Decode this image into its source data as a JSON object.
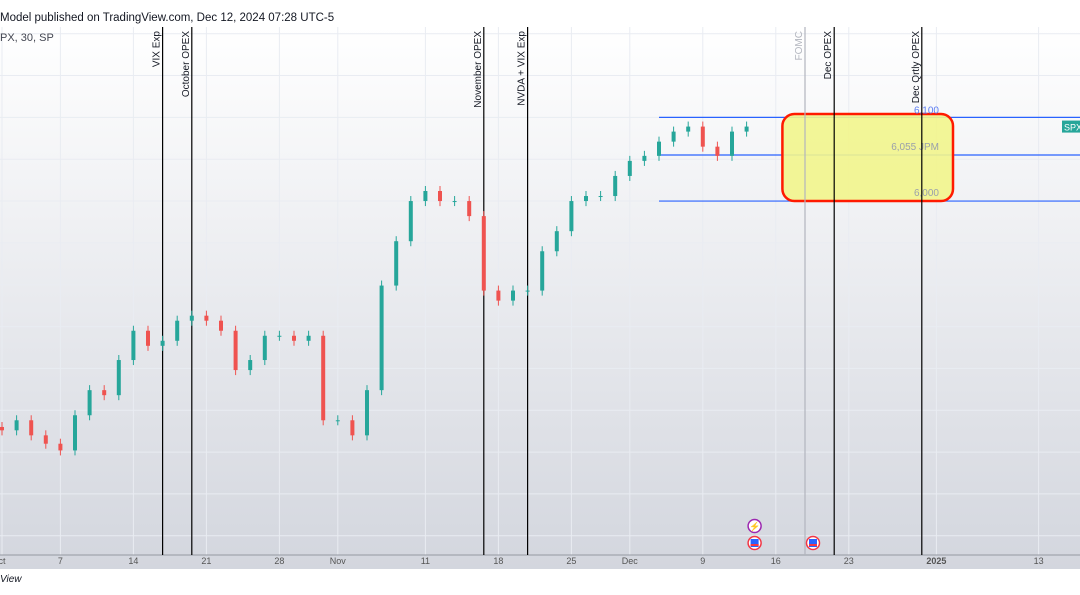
{
  "header": {
    "published": "Model published on TradingView.com, Dec 12, 2024 07:28 UTC-5",
    "symbol": "PX, 30, SP"
  },
  "footer": {
    "brand_fragment": "View"
  },
  "colors": {
    "up": "#26a69a",
    "down": "#ef5350",
    "level_line": "#2962ff",
    "zone_fill": "#f2f58c",
    "zone_border": "#ff1a00",
    "event_line": "#000000",
    "fomc_line": "#b2b5be",
    "spx_tag": "#26a69a"
  },
  "chart_data": {
    "type": "candlestick",
    "symbol_tag": "SPX",
    "interval": "30",
    "ylim": [
      5577,
      6208
    ],
    "grid": true,
    "dates": [
      "2024-10-01",
      "2024-10-02",
      "2024-10-03",
      "2024-10-04",
      "2024-10-07",
      "2024-10-08",
      "2024-10-09",
      "2024-10-10",
      "2024-10-11",
      "2024-10-14",
      "2024-10-15",
      "2024-10-16",
      "2024-10-17",
      "2024-10-18",
      "2024-10-21",
      "2024-10-22",
      "2024-10-23",
      "2024-10-24",
      "2024-10-25",
      "2024-10-28",
      "2024-10-29",
      "2024-10-30",
      "2024-10-31",
      "2024-11-01",
      "2024-11-04",
      "2024-11-05",
      "2024-11-06",
      "2024-11-07",
      "2024-11-08",
      "2024-11-11",
      "2024-11-12",
      "2024-11-13",
      "2024-11-14",
      "2024-11-15",
      "2024-11-18",
      "2024-11-19",
      "2024-11-20",
      "2024-11-21",
      "2024-11-22",
      "2024-11-25",
      "2024-11-26",
      "2024-11-27",
      "2024-11-29",
      "2024-12-02",
      "2024-12-03",
      "2024-12-04",
      "2024-12-05",
      "2024-12-06",
      "2024-12-09",
      "2024-12-10",
      "2024-12-11",
      "2024-12-12"
    ],
    "closes": [
      5726,
      5738,
      5720,
      5710,
      5702,
      5744,
      5774,
      5768,
      5810,
      5845,
      5827,
      5833,
      5857,
      5863,
      5857,
      5845,
      5798,
      5810,
      5839,
      5839,
      5833,
      5839,
      5738,
      5738,
      5720,
      5774,
      5899,
      5952,
      6000,
      6012,
      6000,
      6000,
      5982,
      5893,
      5881,
      5893,
      5893,
      5940,
      5964,
      6000,
      6006,
      6006,
      6030,
      6048,
      6054,
      6071,
      6083,
      6089,
      6065,
      6054,
      6083,
      6089
    ],
    "x_ticks": [
      {
        "label": "ct",
        "date": "2024-10-01"
      },
      {
        "label": "7",
        "date": "2024-10-07"
      },
      {
        "label": "14",
        "date": "2024-10-14"
      },
      {
        "label": "21",
        "date": "2024-10-21"
      },
      {
        "label": "28",
        "date": "2024-10-28"
      },
      {
        "label": "Nov",
        "date": "2024-11-01"
      },
      {
        "label": "11",
        "date": "2024-11-11"
      },
      {
        "label": "18",
        "date": "2024-11-18"
      },
      {
        "label": "25",
        "date": "2024-11-25"
      },
      {
        "label": "Dec",
        "date": "2024-12-02"
      },
      {
        "label": "9",
        "date": "2024-12-09"
      },
      {
        "label": "16",
        "date": "2024-12-16"
      },
      {
        "label": "23",
        "date": "2024-12-23"
      },
      {
        "label": "2025",
        "date": "2025-01-02",
        "bold": true
      },
      {
        "label": "13",
        "date": "2025-01-13"
      }
    ],
    "events": [
      {
        "label": "VIX Exp",
        "date": "2024-10-16"
      },
      {
        "label": "October OPEX",
        "date": "2024-10-18"
      },
      {
        "label": "November OPEX",
        "date": "2024-11-15"
      },
      {
        "label": "NVDA + VIX Exp",
        "date": "2024-11-20"
      },
      {
        "label": "FOMC",
        "date": "2024-12-18",
        "muted": true
      },
      {
        "label": "Dec OPEX",
        "date": "2024-12-20"
      },
      {
        "label": "Dec Qrtly OPEX",
        "date": "2024-12-31"
      }
    ],
    "levels": [
      {
        "value": 6100,
        "label": "6,100"
      },
      {
        "value": 6055,
        "label": "6,055 JPM"
      },
      {
        "value": 6000,
        "label": "6,000"
      }
    ],
    "levels_start": "2024-12-04",
    "zone": {
      "from": "2024-12-17",
      "to": "2025-01-03",
      "top": 6104,
      "bottom": 6000
    },
    "calendar_icons": [
      {
        "date": "2024-12-12",
        "type": "earnings-bolt"
      },
      {
        "date": "2024-12-12",
        "type": "us-flag"
      },
      {
        "date": "2024-12-18",
        "type": "us-flag"
      }
    ]
  }
}
